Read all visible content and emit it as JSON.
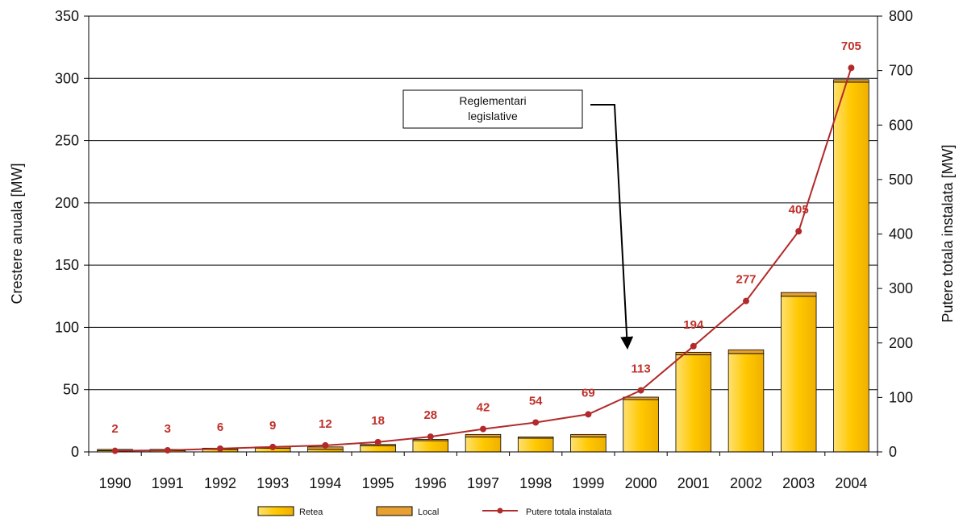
{
  "chart_data": {
    "type": "bar",
    "categories": [
      "1990",
      "1991",
      "1992",
      "1993",
      "1994",
      "1995",
      "1996",
      "1997",
      "1998",
      "1999",
      "2000",
      "2001",
      "2002",
      "2003",
      "2004"
    ],
    "series": [
      {
        "name": "Retea",
        "type": "bar",
        "axis": "left",
        "values": [
          1,
          1,
          2,
          3,
          2,
          5,
          9,
          12,
          11,
          12,
          42,
          78,
          79,
          125,
          297
        ]
      },
      {
        "name": "Local",
        "type": "bar",
        "axis": "left",
        "values": [
          1,
          1,
          1,
          1,
          2,
          1,
          1,
          2,
          1,
          2,
          2,
          2,
          3,
          3,
          2
        ]
      },
      {
        "name": "Putere totala instalata",
        "type": "line",
        "axis": "right",
        "values": [
          2,
          3,
          6,
          9,
          12,
          18,
          28,
          42,
          54,
          69,
          113,
          194,
          277,
          405,
          705
        ]
      }
    ],
    "data_labels": [
      "2",
      "3",
      "6",
      "9",
      "12",
      "18",
      "28",
      "42",
      "54",
      "69",
      "113",
      "194",
      "277",
      "405",
      "705"
    ],
    "ylabel": "Crestere anuala [MW]",
    "y2label": "Putere totala instalata [MW]",
    "ylim": [
      0,
      350
    ],
    "y2lim": [
      0,
      800
    ],
    "yticks": [
      0,
      50,
      100,
      150,
      200,
      250,
      300,
      350
    ],
    "y2ticks": [
      0,
      100,
      200,
      300,
      400,
      500,
      600,
      700,
      800
    ],
    "grid": true,
    "legend_position": "bottom",
    "annotation": {
      "line1": "Reglementari",
      "line2": "legislative",
      "points_to": "2000"
    },
    "colors": {
      "retea": "#ffc800",
      "local": "#e8a030",
      "line": "#b22a2a",
      "labels": "#c0302a"
    }
  }
}
